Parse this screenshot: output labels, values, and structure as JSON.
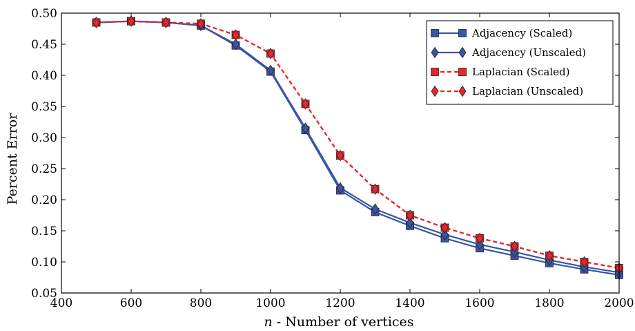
{
  "chart_data": {
    "type": "line",
    "title": "",
    "xlabel_var": "n",
    "xlabel_rest": " - Number of vertices",
    "ylabel": "Percent Error",
    "xlim": [
      400,
      2000
    ],
    "ylim": [
      0.05,
      0.5
    ],
    "xticks": [
      400,
      600,
      800,
      1000,
      1200,
      1400,
      1600,
      1800,
      2000
    ],
    "yticks": [
      0.05,
      0.1,
      0.15,
      0.2,
      0.25,
      0.3,
      0.35,
      0.4,
      0.45,
      0.5
    ],
    "grid": false,
    "legend_position": "top-right",
    "x": [
      500,
      600,
      700,
      800,
      900,
      1000,
      1100,
      1200,
      1300,
      1400,
      1500,
      1600,
      1700,
      1800,
      1900,
      2000
    ],
    "series": [
      {
        "name": "Adjacency (Scaled)",
        "color": "#3a55a4",
        "line": "solid",
        "marker": "square",
        "values": [
          0.485,
          0.487,
          0.485,
          0.48,
          0.448,
          0.406,
          0.312,
          0.215,
          0.18,
          0.158,
          0.138,
          0.122,
          0.11,
          0.098,
          0.088,
          0.079
        ]
      },
      {
        "name": "Adjacency (Unscaled)",
        "color": "#3a55a4",
        "line": "solid",
        "marker": "diamond",
        "values": [
          0.485,
          0.487,
          0.485,
          0.48,
          0.45,
          0.408,
          0.315,
          0.219,
          0.185,
          0.163,
          0.144,
          0.128,
          0.116,
          0.103,
          0.092,
          0.083
        ]
      },
      {
        "name": "Laplacian (Scaled)",
        "color": "#e8252b",
        "line": "dashed",
        "marker": "square",
        "values": [
          0.485,
          0.487,
          0.485,
          0.483,
          0.465,
          0.435,
          0.354,
          0.271,
          0.217,
          0.175,
          0.155,
          0.138,
          0.125,
          0.11,
          0.1,
          0.09
        ]
      },
      {
        "name": "Laplacian (Unscaled)",
        "color": "#e8252b",
        "line": "dashed",
        "marker": "diamond",
        "values": [
          0.485,
          0.487,
          0.485,
          0.483,
          0.465,
          0.435,
          0.354,
          0.271,
          0.217,
          0.175,
          0.155,
          0.138,
          0.125,
          0.11,
          0.1,
          0.09
        ]
      }
    ]
  }
}
